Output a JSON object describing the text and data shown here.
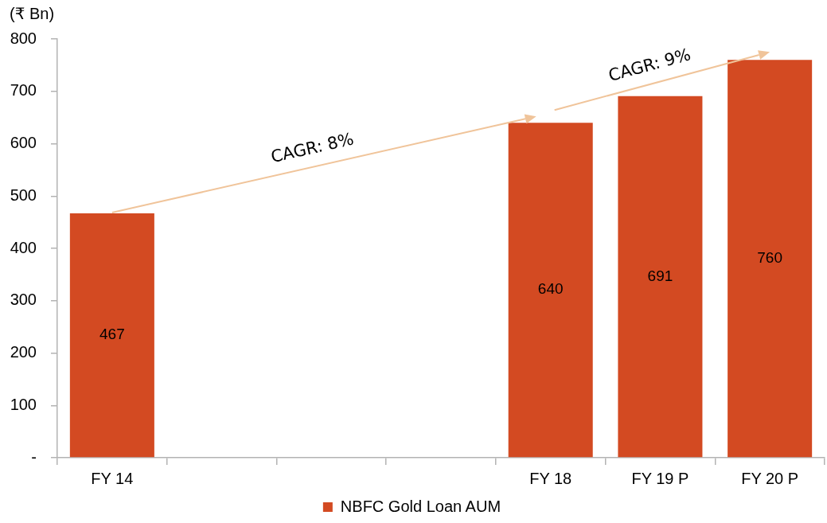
{
  "chart_data": {
    "type": "bar",
    "ylabel": "(₹ Bn)",
    "categories": [
      "FY 14",
      null,
      null,
      null,
      "FY 18",
      "FY 19 P",
      "FY 20 P"
    ],
    "series": [
      {
        "name": "NBFC Gold Loan AUM",
        "color": "#d34a22",
        "values": [
          467,
          null,
          null,
          null,
          640,
          691,
          760
        ]
      }
    ],
    "ylim": [
      0,
      800
    ],
    "yticks": [
      {
        "value": 0,
        "label": "-"
      },
      100,
      200,
      300,
      400,
      500,
      600,
      700,
      800
    ],
    "legend": "bottom",
    "data_labels": true,
    "annotations": [
      "CAGR: 8%",
      "CAGR: 9%"
    ]
  }
}
